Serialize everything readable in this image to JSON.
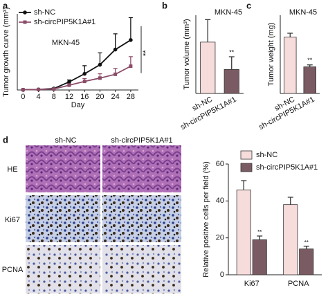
{
  "panels": [
    "a",
    "b",
    "c",
    "d"
  ],
  "histology": {
    "columns": [
      "sh-NC",
      "sh-circPIP5K1A#1"
    ],
    "rows": [
      "HE",
      "Ki67",
      "PCNA"
    ]
  },
  "chart_data": [
    {
      "type": "line",
      "title": "MKN-45",
      "xlabel": "Day",
      "ylabel": "Tumor growth curve (mm³)",
      "x": [
        0,
        4,
        8,
        12,
        16,
        20,
        24,
        28
      ],
      "xlim": [
        -1.5,
        30
      ],
      "xticks": [
        0,
        4,
        8,
        12,
        16,
        20,
        24,
        28
      ],
      "ylim": [
        0,
        1600
      ],
      "legend": "upper left",
      "significance": "**",
      "series": [
        {
          "name": "sh-NC",
          "color": "#111111",
          "marker": "circle",
          "values": [
            5,
            10,
            30,
            170,
            340,
            530,
            850,
            1050
          ],
          "errors": [
            2,
            5,
            15,
            40,
            170,
            250,
            330,
            470
          ]
        },
        {
          "name": "sh-circPIP5K1A#1",
          "color": "#8b4c68",
          "marker": "square",
          "values": [
            5,
            10,
            20,
            100,
            180,
            250,
            330,
            500
          ],
          "errors": [
            2,
            5,
            10,
            30,
            60,
            90,
            120,
            200
          ]
        }
      ]
    },
    {
      "type": "bar",
      "title": "MKN-45",
      "ylabel": "Tumor volume (mm³)",
      "categories": [
        "sh-NC",
        "sh-circPIP5K1A#1"
      ],
      "values": [
        1050,
        490
      ],
      "errors": [
        460,
        260
      ],
      "colors": [
        "#f7dcdc",
        "#7b5b63"
      ],
      "ylim": [
        0,
        1600
      ],
      "significance": [
        null,
        "**"
      ]
    },
    {
      "type": "bar",
      "title": "MKN-45",
      "ylabel": "Tumor weight (mg)",
      "categories": [
        "sh-NC",
        "sh-circPIP5K1A#1"
      ],
      "values": [
        720,
        340
      ],
      "errors": [
        50,
        25
      ],
      "colors": [
        "#f7dcdc",
        "#7b5b63"
      ],
      "ylim": [
        0,
        1000
      ],
      "significance": [
        null,
        "**"
      ]
    },
    {
      "type": "bar",
      "ylabel": "Relative positive cells per field (%)",
      "categories": [
        "Ki67",
        "PCNA"
      ],
      "ylim": [
        0,
        60
      ],
      "yticks": [
        0,
        20,
        40,
        60
      ],
      "legend": "upper center",
      "series": [
        {
          "name": "sh-NC",
          "color": "#f7dcdc",
          "values": [
            46,
            38
          ],
          "errors": [
            5,
            4
          ]
        },
        {
          "name": "sh-circPIP5K1A#1",
          "color": "#7b5b63",
          "values": [
            19,
            14
          ],
          "errors": [
            2,
            1.5
          ],
          "significance": [
            "**",
            "**"
          ]
        }
      ]
    }
  ]
}
